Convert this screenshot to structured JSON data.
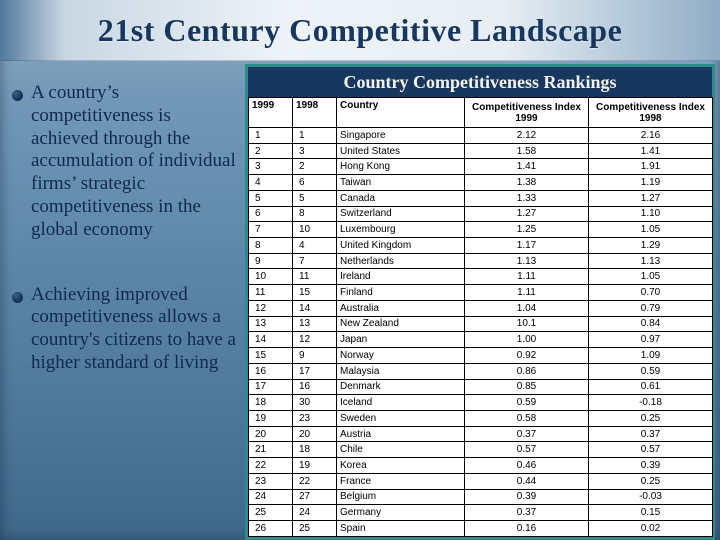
{
  "slide": {
    "title": "21st Century Competitive Landscape",
    "bullets": [
      "A country’s competitiveness is achieved through the accumulation of individual firms’ strategic competitiveness in the global economy",
      "Achieving improved competitiveness allows a country's citizens to have a higher standard of living"
    ]
  },
  "table": {
    "title": "Country Competitiveness Rankings",
    "headers": [
      "1999",
      "1998",
      "Country",
      "Competitiveness Index 1999",
      "Competitiveness Index 1998"
    ],
    "rows": [
      [
        "1",
        "1",
        "Singapore",
        "2.12",
        "2.16"
      ],
      [
        "2",
        "3",
        "United States",
        "1.58",
        "1.41"
      ],
      [
        "3",
        "2",
        "Hong Kong",
        "1.41",
        "1.91"
      ],
      [
        "4",
        "6",
        "Taiwan",
        "1.38",
        "1.19"
      ],
      [
        "5",
        "5",
        "Canada",
        "1.33",
        "1.27"
      ],
      [
        "6",
        "8",
        "Switzerland",
        "1.27",
        "1.10"
      ],
      [
        "7",
        "10",
        "Luxembourg",
        "1.25",
        "1.05"
      ],
      [
        "8",
        "4",
        "United Kingdom",
        "1.17",
        "1.29"
      ],
      [
        "9",
        "7",
        "Netherlands",
        "1.13",
        "1.13"
      ],
      [
        "10",
        "11",
        "Ireland",
        "1.11",
        "1.05"
      ],
      [
        "11",
        "15",
        "Finland",
        "1.11",
        "0.70"
      ],
      [
        "12",
        "14",
        "Australia",
        "1.04",
        "0.79"
      ],
      [
        "13",
        "13",
        "New Zealand",
        "10.1",
        "0.84"
      ],
      [
        "14",
        "12",
        "Japan",
        "1.00",
        "0.97"
      ],
      [
        "15",
        "9",
        "Norway",
        "0.92",
        "1.09"
      ],
      [
        "16",
        "17",
        "Malaysia",
        "0.86",
        "0.59"
      ],
      [
        "17",
        "16",
        "Denmark",
        "0.85",
        "0.61"
      ],
      [
        "18",
        "30",
        "Iceland",
        "0.59",
        "-0.18"
      ],
      [
        "19",
        "23",
        "Sweden",
        "0.58",
        "0.25"
      ],
      [
        "20",
        "20",
        "Austria",
        "0.37",
        "0.37"
      ],
      [
        "21",
        "18",
        "Chile",
        "0.57",
        "0.57"
      ],
      [
        "22",
        "19",
        "Korea",
        "0.46",
        "0.39"
      ],
      [
        "23",
        "22",
        "France",
        "0.44",
        "0.25"
      ],
      [
        "24",
        "27",
        "Belgium",
        "0.39",
        "-0.03"
      ],
      [
        "25",
        "24",
        "Germany",
        "0.37",
        "0.15"
      ],
      [
        "26",
        "25",
        "Spain",
        "0.16",
        "0.02"
      ]
    ]
  },
  "colors": {
    "title_color": "#17375E",
    "body_text_color": "#10294d",
    "band_color": "#17375E",
    "band_text_color": "#F5F5EF",
    "frame_color": "#2E8B8B"
  }
}
